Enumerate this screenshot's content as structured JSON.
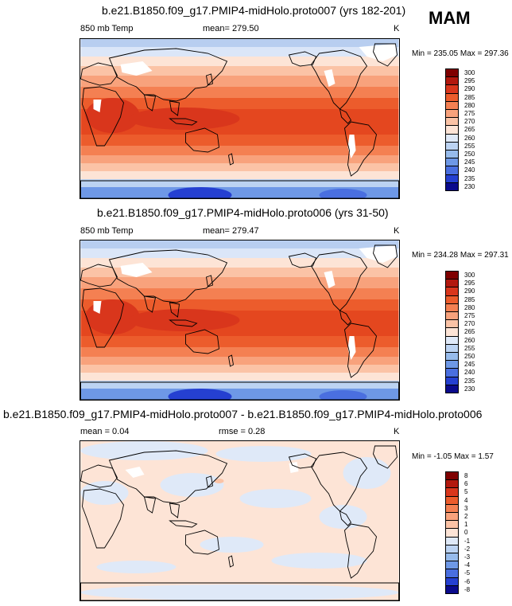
{
  "season": "MAM",
  "panels": [
    {
      "title": "b.e21.B1850.f09_g17.PMIP4-midHolo.proto007 (yrs 182-201)",
      "left_label": "850 mb Temp",
      "center_label": "mean= 279.50",
      "right_label": "K",
      "minmax": "Min = 235.05 Max = 297.36"
    },
    {
      "title": "b.e21.B1850.f09_g17.PMIP4-midHolo.proto006 (yrs 31-50)",
      "left_label": "850 mb Temp",
      "center_label": "mean= 279.47",
      "right_label": "K",
      "minmax": "Min = 234.28 Max = 297.31"
    },
    {
      "title": "b.e21.B1850.f09_g17.PMIP4-midHolo.proto007 - b.e21.B1850.f09_g17.PMIP4-midHolo.proto006",
      "left_label": "mean =   0.04",
      "center_label": "rmse =   0.28",
      "right_label": "K",
      "minmax": "Min =  -1.05 Max =   1.57"
    }
  ],
  "chart_data": [
    {
      "type": "heatmap",
      "title": "b.e21.B1850.f09_g17.PMIP4-midHolo.proto007 (yrs 182-201)",
      "variable": "850 mb Temp",
      "units": "K",
      "mean": 279.5,
      "min": 235.05,
      "max": 297.36,
      "colorbar_levels": [
        "300",
        "295",
        "290",
        "285",
        "280",
        "275",
        "270",
        "265",
        "260",
        "255",
        "250",
        "245",
        "240",
        "235",
        "230"
      ],
      "colorbar_colors": [
        "#7f0000",
        "#b2180e",
        "#d9361c",
        "#ec5c2c",
        "#f48052",
        "#f8a27c",
        "#fbc3a6",
        "#fde4d6",
        "#dfe9f8",
        "#bcd3f2",
        "#97bbeb",
        "#6e98e6",
        "#4a6fe0",
        "#2540d1",
        "#0a0a8c"
      ]
    },
    {
      "type": "heatmap",
      "title": "b.e21.B1850.f09_g17.PMIP4-midHolo.proto006 (yrs 31-50)",
      "variable": "850 mb Temp",
      "units": "K",
      "mean": 279.47,
      "min": 234.28,
      "max": 297.31,
      "colorbar_levels": [
        "300",
        "295",
        "290",
        "285",
        "280",
        "275",
        "270",
        "265",
        "260",
        "255",
        "250",
        "245",
        "240",
        "235",
        "230"
      ],
      "colorbar_colors": [
        "#7f0000",
        "#b2180e",
        "#d9361c",
        "#ec5c2c",
        "#f48052",
        "#f8a27c",
        "#fbc3a6",
        "#fde4d6",
        "#dfe9f8",
        "#bcd3f2",
        "#97bbeb",
        "#6e98e6",
        "#4a6fe0",
        "#2540d1",
        "#0a0a8c"
      ]
    },
    {
      "type": "heatmap",
      "title": "b.e21.B1850.f09_g17.PMIP4-midHolo.proto007 - b.e21.B1850.f09_g17.PMIP4-midHolo.proto006",
      "units": "K",
      "mean": 0.04,
      "rmse": 0.28,
      "min": -1.05,
      "max": 1.57,
      "colorbar_levels": [
        "8",
        "6",
        "5",
        "4",
        "3",
        "2",
        "1",
        "0",
        "-1",
        "-2",
        "-3",
        "-4",
        "-5",
        "-6",
        "-8"
      ],
      "colorbar_colors": [
        "#7f0000",
        "#b2180e",
        "#d9361c",
        "#ec5c2c",
        "#f48052",
        "#f8a27c",
        "#fbc3a6",
        "#fde4d6",
        "#dfe9f8",
        "#bcd3f2",
        "#97bbeb",
        "#6e98e6",
        "#4a6fe0",
        "#2540d1",
        "#0a0a8c"
      ]
    }
  ]
}
